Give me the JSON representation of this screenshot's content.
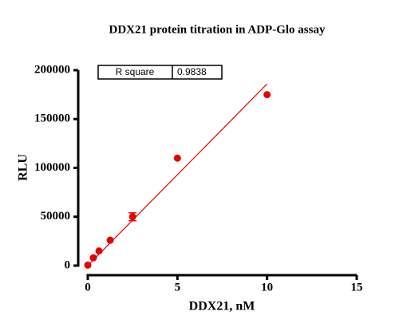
{
  "chart_data": {
    "type": "scatter",
    "title": "DDX21 protein titration in ADP-Glo assay",
    "x_label": "DDX21, nM",
    "y_label": "RLU",
    "xlim": [
      0,
      15
    ],
    "xticks": [
      0,
      5,
      10,
      15
    ],
    "ylim": [
      0,
      200000
    ],
    "yticks": [
      0,
      50000,
      100000,
      150000,
      200000
    ],
    "series": [
      {
        "color": "#e60000",
        "x": [
          0,
          0.3125,
          0.625,
          1.25,
          2.5,
          5,
          10
        ],
        "values": [
          500,
          8000,
          15000,
          26000,
          50000,
          110000,
          175000
        ],
        "errors": [
          null,
          null,
          null,
          null,
          4000,
          null,
          null
        ]
      }
    ],
    "fit": {
      "color": "#e60000",
      "x": [
        0,
        10
      ],
      "values": [
        0,
        186000
      ]
    },
    "annotation": {
      "label": "R square",
      "value": "0.9838"
    }
  }
}
